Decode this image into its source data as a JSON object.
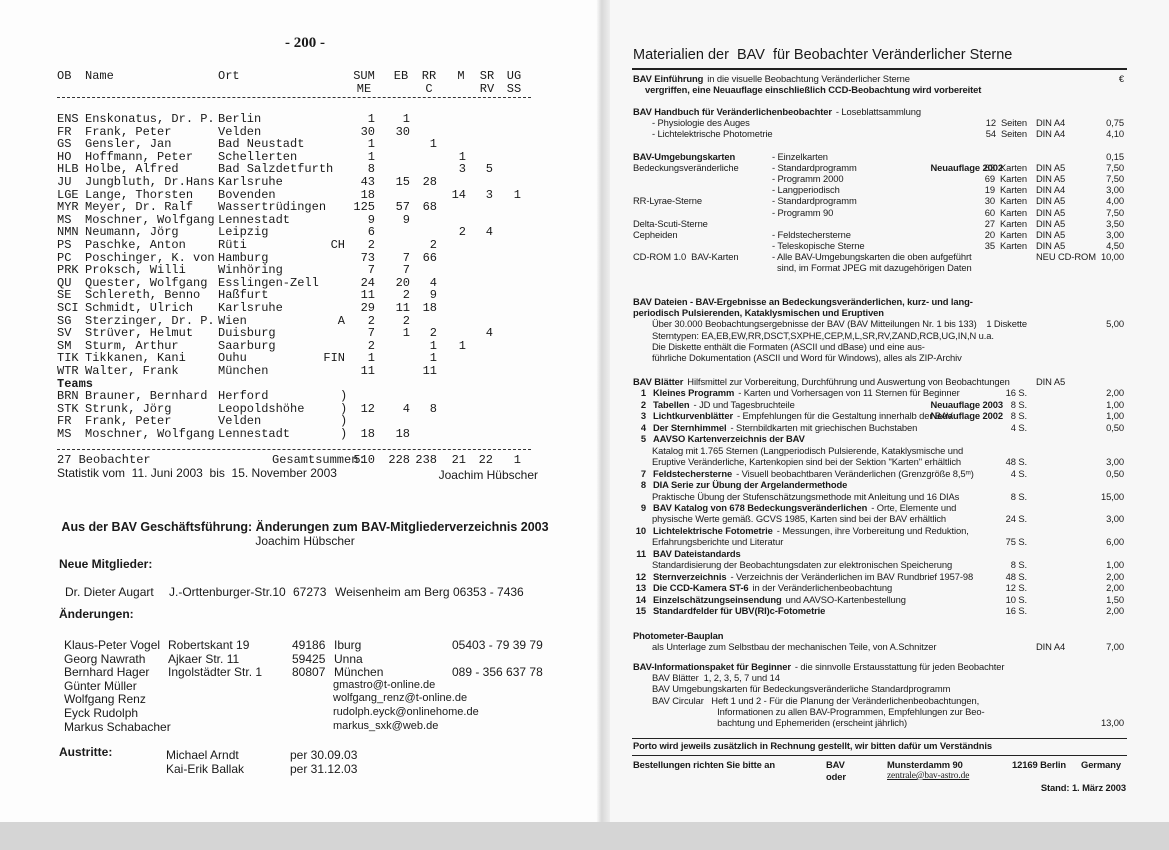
{
  "left": {
    "page_number": "- 200 -",
    "table": {
      "header": [
        {
          "label": "OB"
        },
        {
          "label": "Name"
        },
        {
          "label": "Ort"
        },
        {
          "label": "SUM",
          "sub": "ME"
        },
        {
          "label": "EB"
        },
        {
          "label": "RR",
          "sub": "C"
        },
        {
          "label": "M"
        },
        {
          "label": "SR",
          "sub": "RV"
        },
        {
          "label": "UG",
          "sub": "SS"
        }
      ],
      "observers": [
        {
          "ob": "ENS",
          "name": "Enskonatus, Dr. P.",
          "ort": "Berlin",
          "sum": 1,
          "eb": 1
        },
        {
          "ob": "FR",
          "name": "Frank, Peter",
          "ort": "Velden",
          "sum": 30,
          "eb": 30
        },
        {
          "ob": "GS",
          "name": "Gensler, Jan",
          "ort": "Bad Neustadt",
          "sum": 1,
          "rr": 1
        },
        {
          "ob": "HO",
          "name": "Hoffmann, Peter",
          "ort": "Schellerten",
          "sum": 1,
          "m": 1
        },
        {
          "ob": "HLB",
          "name": "Holbe, Alfred",
          "ort": "Bad Salzdetfurth",
          "sum": 8,
          "m": 3,
          "sr": 5
        },
        {
          "ob": "JU",
          "name": "Jungbluth, Dr.Hans",
          "ort": "Karlsruhe",
          "sum": 43,
          "eb": 15,
          "rr": 28
        },
        {
          "ob": "LGE",
          "name": "Lange, Thorsten",
          "ort": "Bovenden",
          "sum": 18,
          "m": 14,
          "sr": 3,
          "ug": 1
        },
        {
          "ob": "MYR",
          "name": "Meyer, Dr. Ralf",
          "ort": "Wassertrüdingen",
          "sum": 125,
          "eb": 57,
          "rr": 68
        },
        {
          "ob": "MS",
          "name": "Moschner, Wolfgang",
          "ort": "Lennestadt",
          "sum": 9,
          "eb": 9
        },
        {
          "ob": "NMN",
          "name": "Neumann, Jörg",
          "ort": "Leipzig",
          "sum": 6,
          "m": 2,
          "sr": 4
        },
        {
          "ob": "PS",
          "name": "Paschke, Anton",
          "ort": "Rüti",
          "land": "CH",
          "sum": 2,
          "rr": 2
        },
        {
          "ob": "PC",
          "name": "Poschinger, K. von",
          "ort": "Hamburg",
          "sum": 73,
          "eb": 7,
          "rr": 66
        },
        {
          "ob": "PRK",
          "name": "Proksch, Willi",
          "ort": "Winhöring",
          "sum": 7,
          "eb": 7
        },
        {
          "ob": "QU",
          "name": "Quester, Wolfgang",
          "ort": "Esslingen-Zell",
          "sum": 24,
          "eb": 20,
          "rr": 4
        },
        {
          "ob": "SE",
          "name": "Schlereth, Benno",
          "ort": "Haßfurt",
          "sum": 11,
          "eb": 2,
          "rr": 9
        },
        {
          "ob": "SCI",
          "name": "Schmidt, Ulrich",
          "ort": "Karlsruhe",
          "sum": 29,
          "eb": 11,
          "rr": 18
        },
        {
          "ob": "SG",
          "name": "Sterzinger, Dr. P.",
          "ort": "Wien",
          "land": "A",
          "sum": 2,
          "eb": 2
        },
        {
          "ob": "SV",
          "name": "Strüver, Helmut",
          "ort": "Duisburg",
          "sum": 7,
          "eb": 1,
          "rr": 2,
          "sr": 4
        },
        {
          "ob": "SM",
          "name": "Sturm, Arthur",
          "ort": "Saarburg",
          "sum": 2,
          "rr": 1,
          "m": 1
        },
        {
          "ob": "TIK",
          "name": "Tikkanen, Kani",
          "ort": "Ouhu",
          "land": "FIN",
          "sum": 1,
          "rr": 1
        },
        {
          "ob": "WTR",
          "name": "Walter, Frank",
          "ort": "München",
          "sum": 11,
          "rr": 11
        }
      ],
      "teams_label": "Teams",
      "teams": [
        {
          "ob": "BRN",
          "name": "Brauner, Bernhard",
          "ort": "Herford",
          "bracket": ")"
        },
        {
          "ob": "STK",
          "name": "Strunk, Jörg",
          "ort": "Leopoldshöhe",
          "bracket": ")",
          "sum": 12,
          "eb": 4,
          "rr": 8
        },
        {
          "ob": "FR",
          "name": "Frank, Peter",
          "ort": "Velden",
          "bracket": ")"
        },
        {
          "ob": "MS",
          "name": "Moschner, Wolfgang",
          "ort": "Lennestadt",
          "bracket": ")",
          "sum": 18,
          "eb": 18
        }
      ],
      "totals": {
        "observers": "27 Beobachter",
        "label": "Gesamtsummen:",
        "sum": 510,
        "eb": 228,
        "rr": 238,
        "m": 21,
        "sr": 22,
        "ug": 1
      }
    },
    "stats": {
      "text": "Statistik vom  11. Juni 2003  bis  15. November 2003",
      "author": "Joachim Hübscher"
    },
    "notice": {
      "title": "Aus der BAV Geschäftsführung: Änderungen zum BAV-Mitgliederverzeichnis 2003",
      "author": "Joachim Hübscher",
      "new_label": "Neue Mitglieder:",
      "new_members": [
        {
          "name": "Dr. Dieter Augart",
          "street": "J.-Orttenburger-Str.10",
          "zip": "67273",
          "town": "Weisenheim am Berg",
          "phone": "06353 - 7436"
        }
      ],
      "changes_label": "Änderungen:",
      "changes": [
        {
          "name": "Klaus-Peter Vogel",
          "street": "Robertskant 19",
          "zip": "49186",
          "town": "Iburg",
          "phone": "05403 - 79 39 79"
        },
        {
          "name": "Georg Nawrath",
          "street": "Ajkaer Str. 11",
          "zip": "59425",
          "town": "Unna"
        },
        {
          "name": "Bernhard Hager",
          "street": "Ingolstädter Str. 1",
          "zip": "80807",
          "town": "München",
          "phone": "089 - 356 637 78"
        },
        {
          "name": "Günter Müller",
          "email": "gmastro@t-online.de"
        },
        {
          "name": "Wolfgang Renz",
          "email": "wolfgang_renz@t-online.de"
        },
        {
          "name": "Eyck Rudolph",
          "email": "rudolph.eyck@onlinehome.de"
        },
        {
          "name": "Markus Schabacher",
          "email": "markus_sxk@web.de"
        }
      ],
      "leaving_label": "Austritte:",
      "leaving": [
        {
          "name": "Michael Arndt",
          "date": "per 30.09.03"
        },
        {
          "name": "Kai-Erik Ballak",
          "date": "per 31.12.03"
        }
      ]
    }
  },
  "right": {
    "title": "Materialien der  BAV  für Beobachter Veränderlicher Sterne",
    "sections": [
      {
        "lines": [
          {
            "bold": "BAV Einführung",
            "text": "in die visuelle Beobachtung Veränderlicher Sterne",
            "price": "€"
          },
          {
            "bold": "vergriffen, eine Neuauflage einschließlich CCD-Beobachtung wird vorbereitet"
          }
        ]
      },
      {
        "lines": [
          {
            "bold": "BAV Handbuch für Veränderlichenbeobachter",
            "text": "- Loseblattsammlung"
          },
          {
            "text": "- Physiologie des Auges",
            "qty": "12  Seiten",
            "format": "DIN A4",
            "price": "0,75"
          },
          {
            "text": "- Lichtelektrische Photometrie",
            "qty": "54  Seiten",
            "format": "DIN A4",
            "price": "4,10"
          }
        ]
      },
      {
        "lines": [
          {
            "bold": "BAV-Umgebungskarten",
            "item": "- Einzelkarten",
            "price": "0,15"
          },
          {
            "label": "Bedeckungsveränderliche",
            "item": "- Standardprogramm",
            "edition": "Neuauflage 2002",
            "qty": "63  Karten",
            "format": "DIN A5",
            "price": "7,50"
          },
          {
            "item": "- Programm 2000",
            "qty": "69  Karten",
            "format": "DIN A5",
            "price": "7,50"
          },
          {
            "item": "- Langperiodisch",
            "qty": "19  Karten",
            "format": "DIN A4",
            "price": "3,00"
          },
          {
            "label": "RR-Lyrae-Sterne",
            "item": "- Standardprogramm",
            "qty": "30  Karten",
            "format": "DIN A5",
            "price": "4,00"
          },
          {
            "item": "- Programm 90",
            "qty": "60  Karten",
            "format": "DIN A5",
            "price": "7,50"
          },
          {
            "label": "Delta-Scuti-Sterne",
            "qty": "27  Karten",
            "format": "DIN A5",
            "price": "3,50"
          },
          {
            "label": "Cepheiden",
            "item": "- Feldstechersterne",
            "qty": "20  Karten",
            "format": "DIN A5",
            "price": "3,00"
          },
          {
            "item": "- Teleskopische Sterne",
            "qty": "35  Karten",
            "format": "DIN A5",
            "price": "4,50"
          },
          {
            "label": "CD-ROM 1.0  BAV-Karten",
            "item": "- Alle BAV-Umgebungskarten die oben aufgeführt",
            "format": "NEU CD-ROM",
            "price": "10,00"
          },
          {
            "item": "  sind, im Format JPEG mit dazugehörigen Daten"
          }
        ]
      },
      {
        "lines": [
          {
            "bold": "BAV Dateien - BAV-Ergebnisse an Bedeckungsveränderlichen, kurz- und lang-"
          },
          {
            "bold": "periodisch Pulsierenden, Kataklysmischen und Eruptiven"
          },
          {
            "text": "Über 30.000 Beobachtungsergebnisse der BAV (BAV Mitteilungen Nr. 1 bis 133)",
            "qty": "1 Diskette",
            "price": "5,00"
          },
          {
            "text": "Sterntypen: EA,EB,EW,RR,DSCT,SXPHE,CEP,M,L,SR,RV,ZAND,RCB,UG,IN,N u.a."
          },
          {
            "text": "Die Diskette enthält die Formaten (ASCII und dBase) und eine aus-"
          },
          {
            "text": "führliche Dokumentation (ASCII und Word für Windows), alles als ZIP-Archiv"
          }
        ]
      },
      {
        "lines": [
          {
            "bold": "BAV Blätter",
            "text": "Hilfsmittel zur Vorbereitung, Durchführung und Auswertung von Beobachtungen",
            "format": "DIN A5"
          },
          {
            "num": "1",
            "bold": "Kleines Programm",
            "text": "- Karten und Vorhersagen von 11 Sternen für Beginner",
            "qty": "16 S.",
            "price": "2,00"
          },
          {
            "num": "2",
            "bold": "Tabellen",
            "text": "- JD und Tagesbruchteile",
            "edition": "Neuauflage 2003",
            "qty": "8 S.",
            "price": "1,00"
          },
          {
            "num": "3",
            "bold": "Lichtkurvenblätter",
            "text": "- Empfehlungen für die Gestaltung innerhalb der BAV",
            "edition": "Neuauflage 2002",
            "qty": "8 S.",
            "price": "1,00"
          },
          {
            "num": "4",
            "bold": "Der Sternhimmel",
            "text": "- Sternbildkarten mit griechischen Buchstaben",
            "qty": "4 S.",
            "price": "0,50"
          },
          {
            "num": "5",
            "bold": "AAVSO Kartenverzeichnis der BAV"
          },
          {
            "text": "Katalog mit 1.765 Sternen (Langperiodisch Pulsierende, Kataklysmische und"
          },
          {
            "text": "Eruptive Veränderliche, Kartenkopien sind bei der Sektion \"Karten\" erhältlich",
            "qty": "48 S.",
            "price": "3,00"
          },
          {
            "num": "7",
            "bold": "Feldstechersterne",
            "text": "- Visuell beobachtbaren Veränderlichen (Grenzgröße 8,5ᵐ)",
            "qty": "4 S.",
            "price": "0,50"
          },
          {
            "num": "8",
            "bold": "DIA Serie zur Übung der Argelandermethode"
          },
          {
            "text": "Praktische Übung der Stufenschätzungsmethode mit Anleitung und 16 DIAs",
            "qty": "8 S.",
            "price": "15,00"
          },
          {
            "num": "9",
            "bold": "BAV Katalog von 678 Bedeckungsveränderlichen",
            "text": "- Orte, Elemente und"
          },
          {
            "text": "physische Werte gemäß. GCVS 1985, Karten sind bei der BAV erhältlich",
            "qty": "24 S.",
            "price": "3,00"
          },
          {
            "num": "10",
            "bold": "Lichtelektrische Fotometrie",
            "text": "- Messungen, ihre Vorbereitung und Reduktion,"
          },
          {
            "text": "Erfahrungsberichte und Literatur",
            "qty": "75 S.",
            "price": "6,00"
          },
          {
            "num": "11",
            "bold": "BAV Dateistandards"
          },
          {
            "text": "Standardisierung der Beobachtungsdaten zur elektronischen Speicherung",
            "qty": "8 S.",
            "price": "1,00"
          },
          {
            "num": "12",
            "bold": "Sternverzeichnis",
            "text": "- Verzeichnis der Veränderlichen im BAV Rundbrief 1957-98",
            "qty": "48 S.",
            "price": "2,00"
          },
          {
            "num": "13",
            "bold": "Die CCD-Kamera ST-6",
            "text": "in der Veränderlichenbeobachtung",
            "qty": "12 S.",
            "price": "2,00"
          },
          {
            "num": "14",
            "bold": "Einzelschätzungseinsendung",
            "text": "und AAVSO-Kartenbestellung",
            "qty": "10 S.",
            "price": "1,50"
          },
          {
            "num": "15",
            "bold": "Standardfelder für UBV(RI)c-Fotometrie",
            "qty": "16 S.",
            "price": "2,00"
          }
        ]
      },
      {
        "lines": [
          {
            "bold": "Photometer-Bauplan"
          },
          {
            "text": "als Unterlage zum Selbstbau der mechanischen Teile, von A.Schnitzer",
            "format": "DIN A4",
            "price": "7,00"
          }
        ]
      },
      {
        "lines": [
          {
            "bold": "BAV-Informationspaket für Beginner",
            "text": "- die sinnvolle Erstausstattung für jeden Beobachter"
          },
          {
            "text": "BAV Blätter  1, 2, 3, 5, 7 und 14"
          },
          {
            "text": "BAV Umgebungskarten für Bedeckungsveränderliche Standardprogramm"
          },
          {
            "text": "BAV Circular   Heft 1 und 2 - Für die Planung der Veränderlichenbeobachtungen,"
          },
          {
            "text": "                          Informationen zu allen BAV-Programmen, Empfehlungen zur Beo-"
          },
          {
            "text": "                          bachtung und Ephemeriden (erscheint jährlich)",
            "price": "13,00"
          }
        ]
      }
    ],
    "porto": "Porto wird jeweils zusätzlich in Rechnung gestellt, wir bitten dafür um Verständnis",
    "order": [
      {
        "text": "Bestellungen richten Sie bitte an",
        "org": "BAV",
        "street": "Munsterdamm 90",
        "city": "12169 Berlin",
        "country": "Germany"
      },
      {
        "org": "oder",
        "street": "zentrale@bav-astro.de"
      }
    ],
    "stand": "Stand: 1. März 2003"
  }
}
